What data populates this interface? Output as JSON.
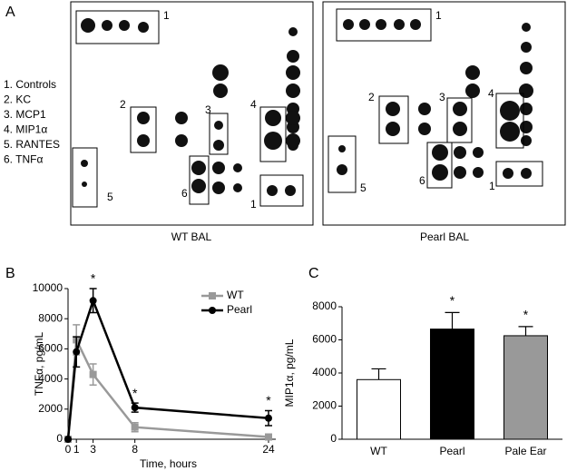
{
  "panel_a": {
    "panel_label": "A",
    "legend": [
      "1. Controls",
      "2. KC",
      "3. MCP1",
      "4. MIP1α",
      "5. RANTES",
      "6. TNFα"
    ],
    "wt": {
      "caption": "WT  BAL",
      "box_labels": [
        "1",
        "2",
        "3",
        "4",
        "6",
        "1",
        "5"
      ]
    },
    "pearl": {
      "caption": "Pearl BAL",
      "box_labels": [
        "1",
        "2",
        "3",
        "4",
        "6",
        "1",
        "5"
      ]
    }
  },
  "chart_data": [
    {
      "type": "line",
      "panel_label": "B",
      "x_label": "Time, hours",
      "y_label": "TNFα, pg/mL",
      "x": [
        0,
        1,
        3,
        8,
        24
      ],
      "xlim": [
        0,
        24
      ],
      "xticks": [
        0,
        1,
        3,
        8,
        24
      ],
      "ylim": [
        0,
        10000
      ],
      "yticks": [
        0,
        2000,
        4000,
        6000,
        8000,
        10000
      ],
      "legend": "upper right",
      "series": [
        {
          "name": "WT",
          "color": "#999999",
          "marker": "square",
          "values": [
            0,
            6600,
            4300,
            800,
            150
          ],
          "errors": [
            0,
            1000,
            700,
            300,
            100
          ]
        },
        {
          "name": "Pearl",
          "color": "#000000",
          "marker": "circle",
          "values": [
            0,
            5800,
            9200,
            2100,
            1400
          ],
          "errors": [
            0,
            1000,
            800,
            300,
            500
          ]
        }
      ],
      "annotations": [
        {
          "text": "*",
          "x": 3
        },
        {
          "text": "*",
          "x": 8
        },
        {
          "text": "*",
          "x": 24
        }
      ]
    },
    {
      "type": "bar",
      "panel_label": "C",
      "y_label": "MIP1α, pg/mL",
      "categories": [
        "WT",
        "Pearl",
        "Pale Ear"
      ],
      "values": [
        3600,
        6650,
        6250
      ],
      "errors": [
        650,
        1000,
        550
      ],
      "colors": [
        "#ffffff",
        "#000000",
        "#999999"
      ],
      "ylim": [
        0,
        8000
      ],
      "yticks": [
        0,
        2000,
        4000,
        6000,
        8000
      ],
      "annotations": [
        {
          "text": "*",
          "index": 1
        },
        {
          "text": "*",
          "index": 2
        }
      ]
    }
  ]
}
